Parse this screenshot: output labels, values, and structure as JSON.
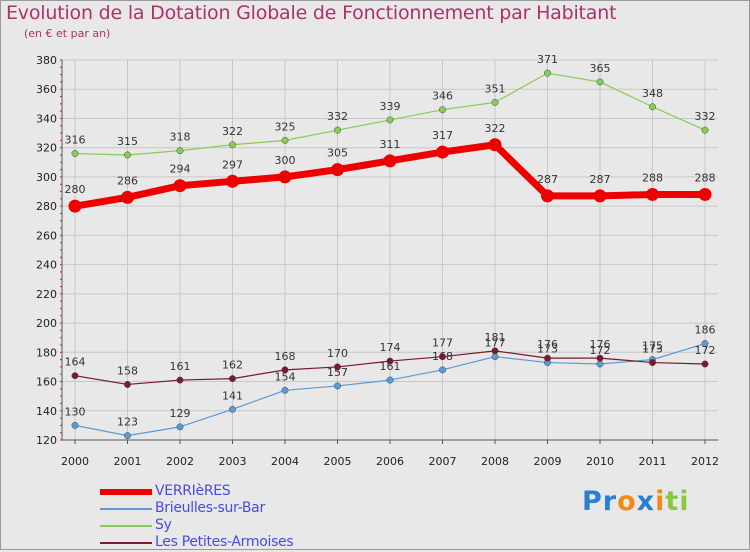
{
  "chart_data": {
    "type": "line",
    "title": "Evolution de la Dotation Globale de Fonctionnement par Habitant",
    "subtitle": "(en € et par an)",
    "xlabel": "",
    "ylabel": "",
    "categories": [
      "2000",
      "2001",
      "2002",
      "2003",
      "2004",
      "2005",
      "2006",
      "2007",
      "2008",
      "2009",
      "2010",
      "2011",
      "2012"
    ],
    "ylim": [
      120,
      380
    ],
    "yticks": [
      120,
      140,
      160,
      180,
      200,
      220,
      240,
      260,
      280,
      300,
      320,
      340,
      360,
      380
    ],
    "grid": true,
    "series": [
      {
        "name": "VERRIèRES",
        "color": "#ee0000",
        "values": [
          280,
          286,
          294,
          297,
          300,
          305,
          311,
          317,
          322,
          287,
          287,
          288,
          288
        ]
      },
      {
        "name": "Brieulles-sur-Bar",
        "color": "#5b9bd5",
        "values": [
          130,
          123,
          129,
          141,
          154,
          157,
          161,
          168,
          177,
          173,
          172,
          175,
          186
        ]
      },
      {
        "name": "Sy",
        "color": "#88cc55",
        "values": [
          316,
          315,
          318,
          322,
          325,
          332,
          339,
          346,
          351,
          371,
          365,
          348,
          332
        ]
      },
      {
        "name": "Les Petites-Armoises",
        "color": "#7a1a2a",
        "values": [
          164,
          158,
          161,
          162,
          168,
          170,
          174,
          177,
          181,
          176,
          176,
          173,
          172
        ]
      }
    ]
  },
  "logo": {
    "parts": [
      "Pr",
      "o",
      "x",
      "i",
      "ti"
    ],
    "colors": [
      "#2b7fd0",
      "#f08a14",
      "#2b7fd0",
      "#f08a14",
      "#8cc63f"
    ]
  }
}
